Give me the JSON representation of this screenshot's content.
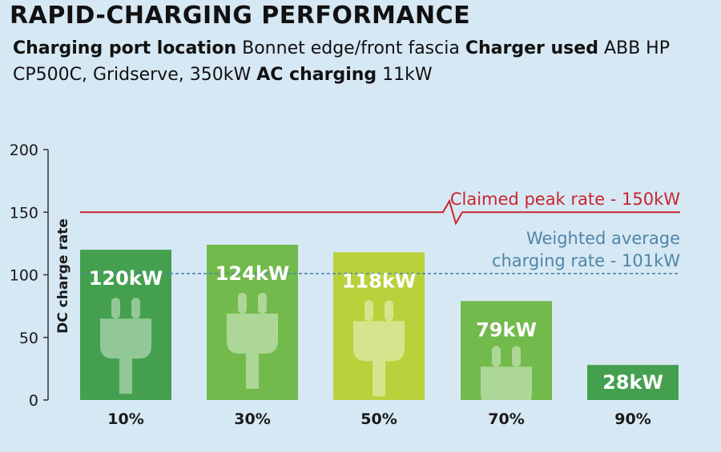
{
  "header": {
    "title": "RAPID-CHARGING PERFORMANCE",
    "port_label": "Charging port location",
    "port_value": "Bonnet edge/front fascia",
    "charger_label": "Charger used",
    "charger_value": "ABB HP CP500C, Gridserve, 350kW",
    "ac_label": "AC charging",
    "ac_value": "11kW"
  },
  "chart_data": {
    "type": "bar",
    "ylabel": "DC charge rate",
    "ylim": [
      0,
      200
    ],
    "yticks": [
      "0",
      "50",
      "100",
      "150",
      "200"
    ],
    "categories": [
      "10%",
      "30%",
      "50%",
      "70%",
      "90%"
    ],
    "values": [
      120,
      124,
      118,
      79,
      28
    ],
    "value_labels": [
      "120kW",
      "124kW",
      "118kW",
      "79kW",
      "28kW"
    ],
    "bar_colors": [
      "#44a04f",
      "#72ba4b",
      "#b8d23c",
      "#72ba4b",
      "#44a04f"
    ],
    "claimed_peak": {
      "value": 150,
      "label": "Claimed peak rate - 150kW",
      "color": "#c8262e"
    },
    "weighted_average": {
      "value": 101,
      "label_line1": "Weighted average",
      "label_line2": "charging rate - 101kW",
      "color": "#4e86a6"
    }
  }
}
